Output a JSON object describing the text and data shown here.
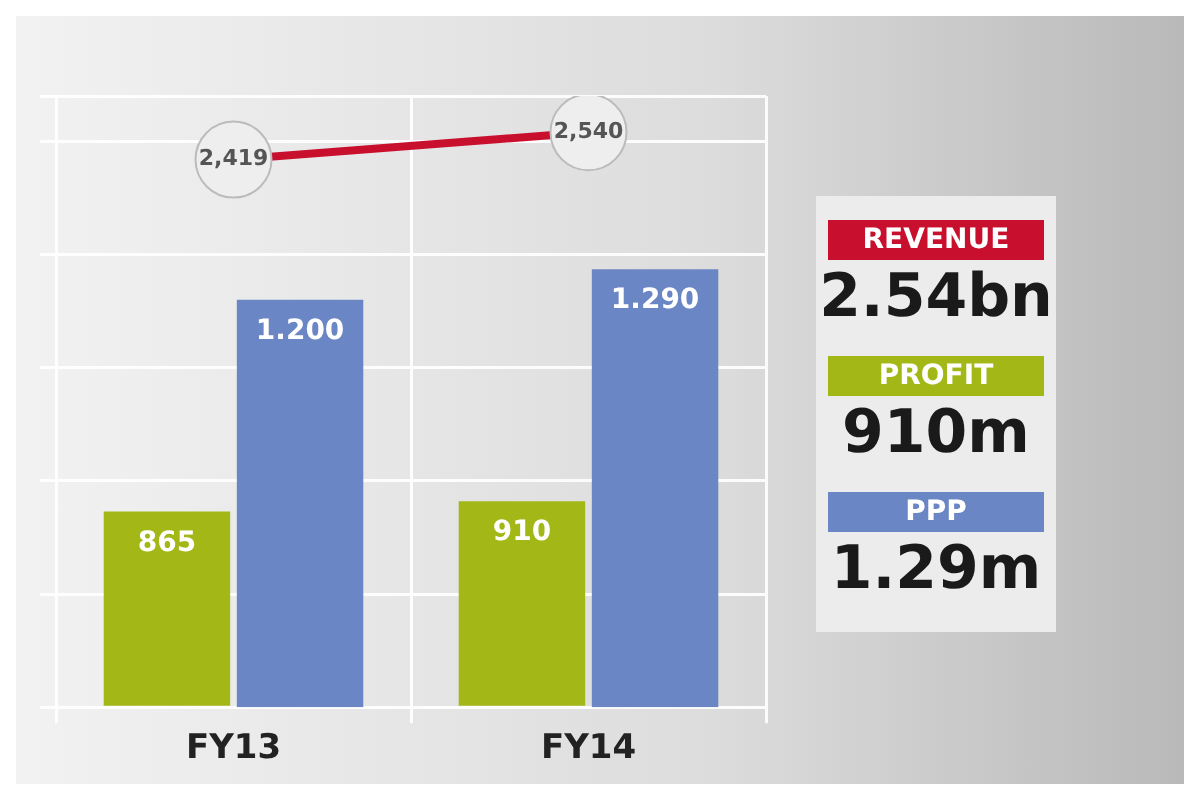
{
  "chart_data": {
    "type": "bar",
    "categories": [
      "FY13",
      "FY14"
    ],
    "series": [
      {
        "name": "REVENUE",
        "type": "line",
        "color": "#c8102e",
        "values": [
          2419,
          2540
        ],
        "value_labels": [
          "2,419",
          "2,540"
        ]
      },
      {
        "name": "PROFIT",
        "color": "#a3b816",
        "values": [
          865,
          910
        ],
        "value_labels": [
          "865",
          "910"
        ]
      },
      {
        "name": "PPP",
        "axis": "y2",
        "color": "#6b86c4",
        "values": [
          1.2,
          1.29
        ],
        "value_labels": [
          "1.200",
          "1.290"
        ]
      }
    ],
    "annotations": [
      "2.54bn",
      "910m",
      "1.29m"
    ],
    "legend": "right",
    "grid": true,
    "tick_labels": "x",
    "marker": "circle"
  }
}
